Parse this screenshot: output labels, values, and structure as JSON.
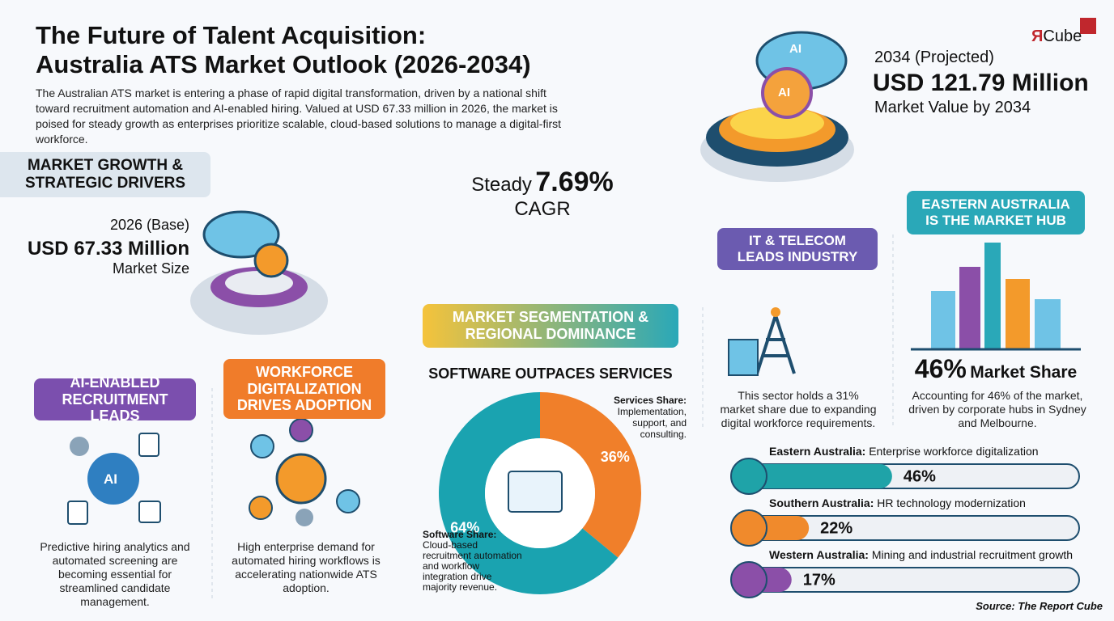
{
  "header": {
    "title_line1": "The Future of Talent Acquisition:",
    "title_line2": "Australia ATS Market Outlook (2026-2034)",
    "description": "The Australian ATS market is entering a phase of rapid digital transformation, driven by a national shift toward recruitment automation and AI-enabled hiring. Valued at USD 67.33 million in 2026, the market is poised for steady growth as enterprises prioritize scalable, cloud-based solutions to manage a digital-first workforce."
  },
  "logo": {
    "mark": "Я",
    "text": "Cube"
  },
  "projection": {
    "year_label": "2034 (Projected)",
    "value": "USD 121.79 Million",
    "caption": "Market Value by 2034",
    "icon_text_1": "AI",
    "icon_text_2": "AI"
  },
  "growth": {
    "heading_line1": "MARKET GROWTH &",
    "heading_line2": "STRATEGIC DRIVERS",
    "base_label": "2026 (Base)",
    "base_value": "USD 67.33 Million",
    "base_caption": "Market Size"
  },
  "cagr": {
    "prefix": "Steady",
    "value": "7.69%",
    "suffix": "CAGR"
  },
  "drivers": [
    {
      "heading": "AI-ENABLED RECRUITMENT LEADS",
      "icon_text": "AI",
      "text": "Predictive hiring analytics and automated screening are becoming essential for streamlined candidate management."
    },
    {
      "heading": "WORKFORCE DIGITALIZATION DRIVES ADOPTION",
      "text": "High enterprise demand for automated hiring workflows is accelerating nationwide ATS adoption."
    }
  ],
  "segmentation": {
    "heading": "MARKET SEGMENTATION & REGIONAL DOMINANCE",
    "subtitle": "SOFTWARE OUTPACES SERVICES",
    "chart": {
      "type": "pie",
      "categories": [
        "Services Share:",
        "Software Share:"
      ],
      "values": [
        36,
        64
      ],
      "value_labels": [
        "36%",
        "64%"
      ],
      "colors": [
        "#f07f2a",
        "#1aa3b0"
      ]
    },
    "services_text": "Implementation, support, and consulting.",
    "software_text": "Cloud-based recruitment automation and workflow integration drive majority revenue."
  },
  "it_telecom": {
    "heading": "IT & TELECOM LEADS INDUSTRY",
    "text": "This sector holds a 31% market share due to expanding digital workforce requirements."
  },
  "eastern": {
    "heading": "EASTERN AUSTRALIA IS THE MARKET HUB",
    "share_value": "46%",
    "share_label": "Market Share",
    "text": "Accounting for 46% of the market, driven by corporate hubs in Sydney and Melbourne."
  },
  "regions": {
    "type": "bar",
    "categories": [
      "Eastern Australia:",
      "Southern Australia:",
      "Western Australia:"
    ],
    "descriptions": [
      "Enterprise workforce digitalization",
      "HR technology modernization",
      "Mining and industrial recruitment growth"
    ],
    "values": [
      46,
      22,
      17
    ],
    "value_labels": [
      "46%",
      "22%",
      "17%"
    ],
    "colors": [
      "#1fa3a8",
      "#f08a2c",
      "#8b4fa8"
    ]
  },
  "source": "Source: The Report Cube"
}
